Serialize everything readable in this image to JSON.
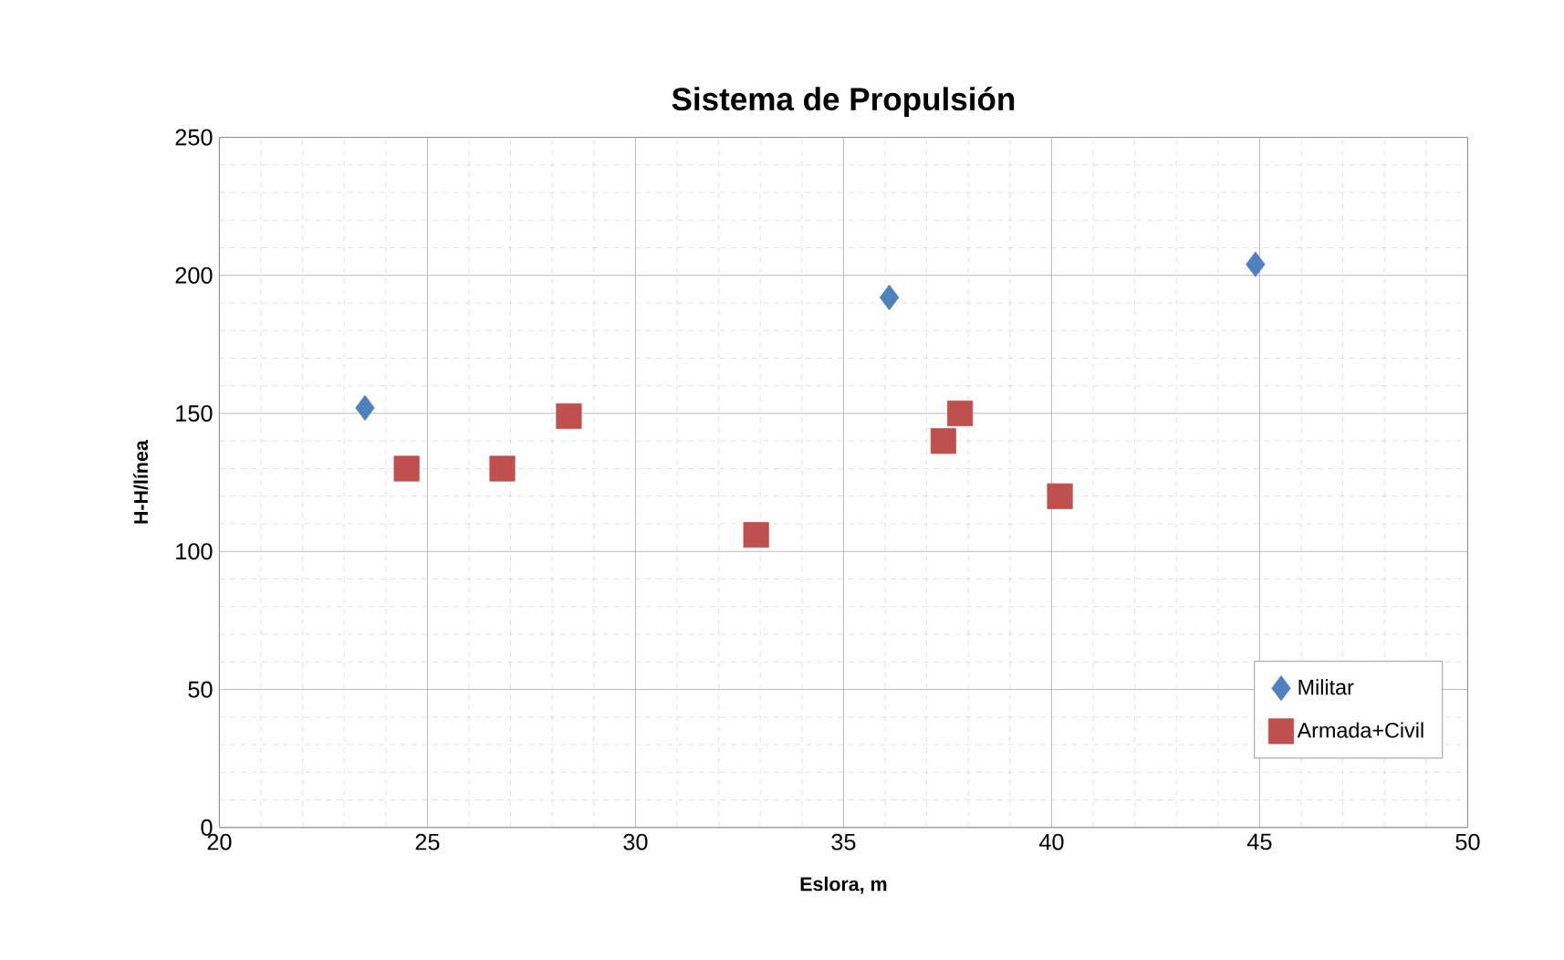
{
  "chart_data": {
    "type": "scatter",
    "title": "Sistema de Propulsión",
    "xlabel": "Eslora, m",
    "ylabel": "H-H/línea",
    "xlim": [
      20,
      50
    ],
    "xticks": [
      20,
      25,
      30,
      35,
      40,
      45,
      50
    ],
    "ylim": [
      0,
      250
    ],
    "yticks": [
      0,
      50,
      100,
      150,
      200,
      250
    ],
    "grid": true,
    "legend": "bottom right",
    "series": [
      {
        "name": "Militar",
        "color": "#4f81bd",
        "marker": "diamond",
        "x": [
          23.5,
          36.1,
          44.9
        ],
        "values": [
          152,
          192,
          204
        ]
      },
      {
        "name": "Armada+Civil",
        "color": "#c0504d",
        "marker": "square",
        "x": [
          24.5,
          26.8,
          28.4,
          32.9,
          37.4,
          37.8,
          40.2
        ],
        "values": [
          130,
          130,
          149,
          106,
          140,
          150,
          120
        ]
      }
    ]
  }
}
